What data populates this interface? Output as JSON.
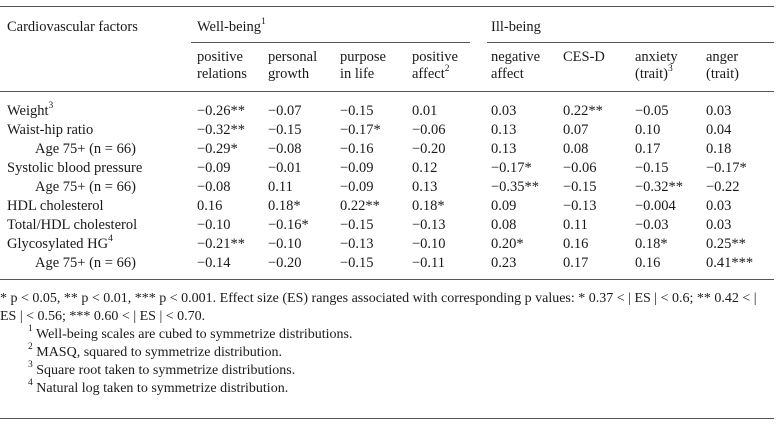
{
  "table": {
    "corner_header": "Cardiovascular factors",
    "groups": [
      {
        "label": "Well-being",
        "sup": "1"
      },
      {
        "label": "Ill-being",
        "sup": ""
      }
    ],
    "columns": [
      {
        "line1": "positive",
        "line2": "relations",
        "sup": ""
      },
      {
        "line1": "personal",
        "line2": "growth",
        "sup": ""
      },
      {
        "line1": "purpose",
        "line2": "in life",
        "sup": ""
      },
      {
        "line1": "positive",
        "line2": "affect",
        "sup": "2"
      },
      {
        "line1": "negative",
        "line2": "affect",
        "sup": ""
      },
      {
        "line1": "CES-D",
        "line2": "",
        "sup": ""
      },
      {
        "line1": "anxiety",
        "line2": "(trait)",
        "sup": "3"
      },
      {
        "line1": "anger",
        "line2": "(trait)",
        "sup": ""
      }
    ],
    "rows": [
      {
        "label": "Weight",
        "sup": "3",
        "indent": false,
        "values": [
          "−0.26**",
          "−0.07",
          "−0.15",
          "0.01",
          "0.03",
          "0.22**",
          "−0.05",
          "0.03"
        ]
      },
      {
        "label": "Waist-hip ratio",
        "sup": "",
        "indent": false,
        "values": [
          "−0.32**",
          "−0.15",
          "−0.17*",
          "−0.06",
          "0.13",
          "0.07",
          "0.10",
          "0.04"
        ]
      },
      {
        "label": "Age 75+ (n = 66)",
        "sup": "",
        "indent": true,
        "values": [
          "−0.29*",
          "−0.08",
          "−0.16",
          "−0.20",
          "0.13",
          "0.08",
          "0.17",
          "0.18"
        ]
      },
      {
        "label": "Systolic blood pressure",
        "sup": "",
        "indent": false,
        "values": [
          "−0.09",
          "−0.01",
          "−0.09",
          "0.12",
          "−0.17*",
          "−0.06",
          "−0.15",
          "−0.17*"
        ]
      },
      {
        "label": "Age 75+ (n = 66)",
        "sup": "",
        "indent": true,
        "values": [
          "−0.08",
          "0.11",
          "−0.09",
          "0.13",
          "−0.35**",
          "−0.15",
          "−0.32**",
          "−0.22"
        ]
      },
      {
        "label": "HDL cholesterol",
        "sup": "",
        "indent": false,
        "values": [
          "0.16",
          "0.18*",
          "0.22**",
          "0.18*",
          "0.09",
          "−0.13",
          "−0.004",
          "0.03"
        ]
      },
      {
        "label": "Total/HDL cholesterol",
        "sup": "",
        "indent": false,
        "values": [
          "−0.10",
          "−0.16*",
          "−0.15",
          "−0.13",
          "0.08",
          "0.11",
          "−0.03",
          "0.03"
        ]
      },
      {
        "label": "Glycosylated HG",
        "sup": "4",
        "indent": false,
        "values": [
          "−0.21**",
          "−0.10",
          "−0.13",
          "−0.10",
          "0.20*",
          "0.16",
          "0.18*",
          "0.25**"
        ]
      },
      {
        "label": "Age 75+ (n = 66)",
        "sup": "",
        "indent": true,
        "values": [
          "−0.14",
          "−0.20",
          "−0.15",
          "−0.11",
          "0.23",
          "0.17",
          "0.16",
          "0.41***"
        ]
      }
    ]
  },
  "notes": {
    "significance": "* p < 0.05, ** p < 0.01, *** p < 0.001. Effect size (ES) ranges associated with corresponding p values: * 0.37 < | ES | < 0.6; ** 0.42 < | ES | < 0.56; *** 0.60 < | ES | < 0.70.",
    "footnotes": [
      {
        "mark": "1",
        "text": "Well-being scales are cubed to symmetrize distributions."
      },
      {
        "mark": "2",
        "text": "MASQ, squared to symmetrize distribution."
      },
      {
        "mark": "3",
        "text": "Square root taken to symmetrize distributions."
      },
      {
        "mark": "4",
        "text": "Natural log taken to symmetrize distribution."
      }
    ]
  }
}
